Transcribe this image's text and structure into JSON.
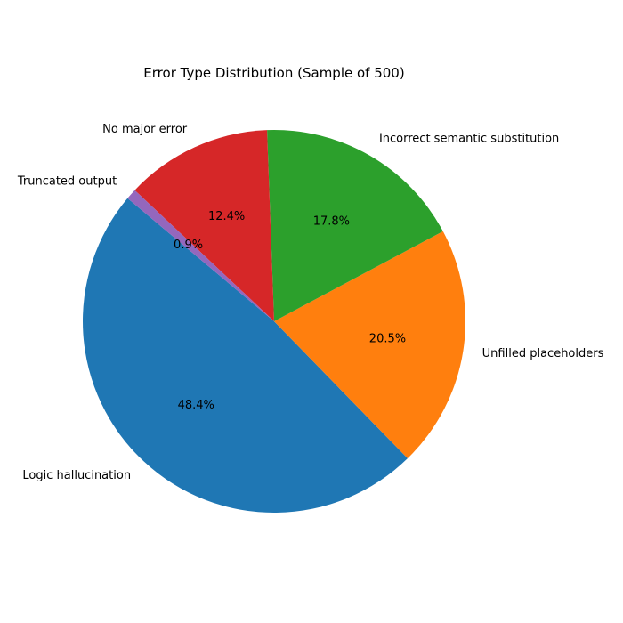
{
  "chart_data": {
    "type": "pie",
    "title": "Error Type Distribution (Sample of 500)",
    "start_angle_deg": 140,
    "direction": "counterclockwise",
    "legend": "none",
    "slices": [
      {
        "label": "Logic hallucination",
        "value": 48.4,
        "pct_label": "48.4%",
        "color": "#1f77b4"
      },
      {
        "label": "Unfilled placeholders",
        "value": 20.5,
        "pct_label": "20.5%",
        "color": "#ff7f0e"
      },
      {
        "label": "Incorrect semantic substitution",
        "value": 17.8,
        "pct_label": "17.8%",
        "color": "#2ca02c"
      },
      {
        "label": "No major error",
        "value": 12.4,
        "pct_label": "12.4%",
        "color": "#d62728"
      },
      {
        "label": "Truncated output",
        "value": 0.9,
        "pct_label": "0.9%",
        "color": "#9467bd"
      }
    ]
  }
}
